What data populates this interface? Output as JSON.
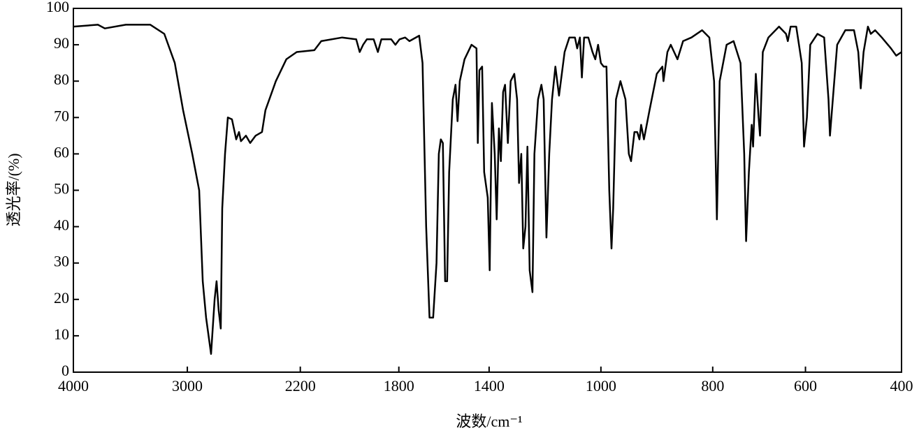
{
  "chart_data": {
    "type": "line",
    "xlabel": "波数/cm⁻¹",
    "ylabel": "透光率/(%)",
    "xlim": [
      4000,
      400
    ],
    "ylim": [
      0,
      100
    ],
    "xticks": [
      4000,
      3000,
      2200,
      1800,
      1400,
      1000,
      800,
      600,
      400
    ],
    "yticks": [
      0,
      10,
      20,
      30,
      40,
      50,
      60,
      70,
      80,
      90,
      100
    ],
    "series": [
      {
        "color": "#000000",
        "x": [
          4000,
          3785,
          3724,
          3540,
          3325,
          3202,
          3110,
          3037,
          2965,
          2916,
          2891,
          2867,
          2832,
          2807,
          2793,
          2778,
          2763,
          2753,
          2733,
          2713,
          2684,
          2654,
          2634,
          2620,
          2585,
          2555,
          2516,
          2471,
          2447,
          2373,
          2299,
          2225,
          2143,
          2115,
          2030,
          1973,
          1959,
          1945,
          1930,
          1902,
          1885,
          1871,
          1831,
          1814,
          1797,
          1772,
          1753,
          1710,
          1695,
          1679,
          1664,
          1648,
          1633,
          1623,
          1614,
          1605,
          1595,
          1586,
          1577,
          1561,
          1549,
          1540,
          1530,
          1509,
          1478,
          1456,
          1450,
          1443,
          1431,
          1422,
          1406,
          1398,
          1390,
          1380,
          1373,
          1365,
          1358,
          1350,
          1343,
          1333,
          1323,
          1310,
          1300,
          1293,
          1285,
          1278,
          1270,
          1263,
          1255,
          1245,
          1238,
          1225,
          1213,
          1205,
          1195,
          1185,
          1175,
          1163,
          1150,
          1130,
          1113,
          1093,
          1085,
          1075,
          1068,
          1060,
          1045,
          1030,
          1020,
          1010,
          1000,
          995,
          990,
          985,
          981,
          978,
          973,
          965,
          956,
          950,
          946,
          940,
          935,
          931,
          928,
          923,
          913,
          900,
          890,
          888,
          881,
          875,
          869,
          863,
          853,
          838,
          819,
          806,
          797,
          791,
          785,
          770,
          755,
          740,
          732,
          728,
          722,
          716,
          713,
          707,
          701,
          698,
          692,
          680,
          657,
          642,
          638,
          632,
          620,
          608,
          603,
          597,
          590,
          575,
          561,
          552,
          549,
          543,
          534,
          517,
          499,
          490,
          485,
          479,
          470,
          464,
          455,
          441,
          422,
          411,
          400
        ],
        "values": [
          95,
          95.5,
          94.5,
          95.5,
          95.5,
          93,
          85,
          72,
          60,
          50,
          25,
          15,
          5,
          20,
          25,
          17,
          12,
          45,
          60,
          70,
          69.5,
          64,
          66,
          63.5,
          65,
          63,
          65,
          66,
          72,
          80,
          86,
          88,
          88.5,
          91,
          92,
          91.5,
          88,
          90,
          91.5,
          91.5,
          88,
          91.5,
          91.5,
          90,
          91.5,
          92,
          91,
          92.5,
          85,
          40,
          15,
          15,
          30,
          60,
          64,
          63,
          25,
          25,
          55,
          75,
          79,
          69,
          80,
          86,
          90,
          89,
          63,
          83,
          84,
          55,
          48,
          28,
          74,
          60,
          42,
          67,
          58,
          77,
          79,
          63,
          80,
          82,
          75,
          52,
          60,
          34,
          40,
          62,
          28,
          22,
          60,
          75,
          79,
          75,
          37,
          60,
          75,
          84,
          76,
          88,
          92,
          92,
          89,
          92,
          81,
          92,
          92,
          88,
          86,
          90,
          85,
          84,
          84,
          50,
          34,
          45,
          75,
          80,
          75,
          60,
          58,
          66,
          66,
          64,
          68,
          64,
          72,
          82,
          84,
          80,
          88,
          90,
          88,
          86,
          91,
          92,
          94,
          92,
          80,
          42,
          80,
          90,
          91,
          85,
          60,
          36,
          55,
          68,
          62,
          82,
          70,
          65,
          88,
          92,
          95,
          93,
          91,
          95,
          95,
          85,
          62,
          70,
          90,
          93,
          92,
          75,
          65,
          75,
          90,
          94,
          94,
          88,
          78,
          88,
          95,
          93,
          94,
          92,
          89,
          87,
          88
        ]
      }
    ]
  }
}
